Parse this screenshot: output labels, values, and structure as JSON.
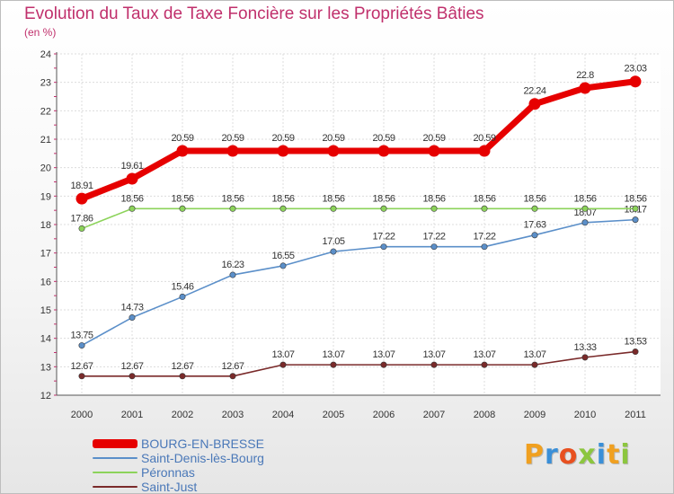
{
  "chart_data": {
    "type": "line",
    "title": "Evolution du Taux de Taxe Foncière sur les Propriétés Bâties",
    "ylabel": "(en %)",
    "xlabel": "",
    "x": [
      "2000",
      "2001",
      "2002",
      "2003",
      "2004",
      "2005",
      "2006",
      "2007",
      "2008",
      "2009",
      "2010",
      "2011"
    ],
    "ylim": [
      12,
      24
    ],
    "yticks": [
      "12",
      "13",
      "14",
      "15",
      "16",
      "17",
      "18",
      "19",
      "20",
      "21",
      "22",
      "23",
      "24"
    ],
    "grid": true,
    "legend_position": "bottom-left",
    "series": [
      {
        "name": "BOURG-EN-BRESSE",
        "color": "#e60000",
        "values": [
          18.91,
          19.61,
          20.59,
          20.59,
          20.59,
          20.59,
          20.59,
          20.59,
          20.59,
          22.24,
          22.8,
          23.03
        ],
        "labels": [
          "18.91",
          "19.61",
          "20.59",
          "20.59",
          "20.59",
          "20.59",
          "20.59",
          "20.59",
          "20.59",
          "22.24",
          "22.8",
          "23.03"
        ]
      },
      {
        "name": "Saint-Denis-lès-Bourg",
        "color": "#5b8fc9",
        "values": [
          13.75,
          14.73,
          15.46,
          16.23,
          16.55,
          17.05,
          17.22,
          17.22,
          17.22,
          17.63,
          18.07,
          18.17
        ],
        "labels": [
          "13.75",
          "14.73",
          "15.46",
          "16.23",
          "16.55",
          "17.05",
          "17.22",
          "17.22",
          "17.22",
          "17.63",
          "18.07",
          "18.17"
        ]
      },
      {
        "name": "Péronnas",
        "color": "#8cd35a",
        "values": [
          17.86,
          18.56,
          18.56,
          18.56,
          18.56,
          18.56,
          18.56,
          18.56,
          18.56,
          18.56,
          18.56,
          18.56
        ],
        "labels": [
          "17.86",
          "18.56",
          "18.56",
          "18.56",
          "18.56",
          "18.56",
          "18.56",
          "18.56",
          "18.56",
          "18.56",
          "18.56",
          "18.56"
        ]
      },
      {
        "name": "Saint-Just",
        "color": "#7a2a2a",
        "values": [
          12.67,
          12.67,
          12.67,
          12.67,
          13.07,
          13.07,
          13.07,
          13.07,
          13.07,
          13.07,
          13.33,
          13.53
        ],
        "labels": [
          "12.67",
          "12.67",
          "12.67",
          "12.67",
          "13.07",
          "13.07",
          "13.07",
          "13.07",
          "13.07",
          "13.07",
          "13.33",
          "13.53"
        ]
      }
    ]
  },
  "legend": {
    "items": [
      {
        "label": "BOURG-EN-BRESSE",
        "color": "#e60000"
      },
      {
        "label": "Saint-Denis-lès-Bourg",
        "color": "#5b8fc9"
      },
      {
        "label": "Péronnas",
        "color": "#8cd35a"
      },
      {
        "label": "Saint-Just",
        "color": "#7a2a2a"
      }
    ]
  },
  "brand": {
    "text": "Proxiti",
    "letter_colors": [
      "#f0a020",
      "#3a8fd8",
      "#e85020",
      "#8cc63f",
      "#3a8fd8",
      "#f0a020",
      "#8cc63f"
    ]
  }
}
